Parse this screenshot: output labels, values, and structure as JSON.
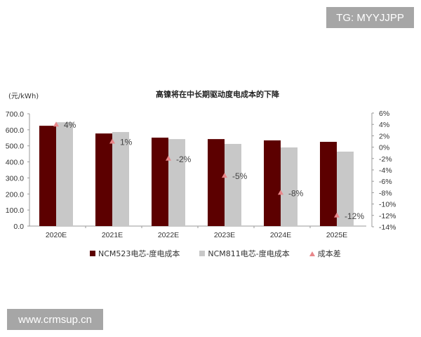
{
  "watermarks": {
    "top": "TG: MYYJJPP",
    "bottom": "www.crmsup.cn"
  },
  "chart_data": {
    "type": "bar",
    "title": "高镍将在中长期驱动度电成本的下降",
    "ylabel": "(元/kWh)",
    "y2label": "",
    "categories": [
      "2020E",
      "2021E",
      "2022E",
      "2023E",
      "2024E",
      "2025E"
    ],
    "series": [
      {
        "name": "NCM523电芯-度电成本",
        "type": "bar",
        "axis": "left",
        "color": "#5c0000",
        "values": [
          625,
          577,
          551,
          542,
          534,
          525
        ]
      },
      {
        "name": "NCM811电芯-度电成本",
        "type": "bar",
        "axis": "left",
        "color": "#c8c8c8",
        "values": [
          647,
          586,
          542,
          512,
          490,
          464
        ]
      },
      {
        "name": "成本差",
        "type": "scatter",
        "axis": "right",
        "marker": "triangle",
        "color": "#e8878a",
        "values": [
          4,
          1,
          -2,
          -5,
          -8,
          -12
        ],
        "labels": [
          "4%",
          "1%",
          "-2%",
          "-5%",
          "-8%",
          "-12%"
        ]
      }
    ],
    "ylim": [
      0,
      700
    ],
    "yticks": [
      "0.0",
      "100.0",
      "200.0",
      "300.0",
      "400.0",
      "500.0",
      "600.0",
      "700.0"
    ],
    "y2lim": [
      -14,
      6
    ],
    "y2ticks": [
      "-14%",
      "-12%",
      "-10%",
      "-8%",
      "-6%",
      "-4%",
      "-2%",
      "0%",
      "2%",
      "4%",
      "6%"
    ],
    "legend_position": "bottom",
    "grid": false
  }
}
